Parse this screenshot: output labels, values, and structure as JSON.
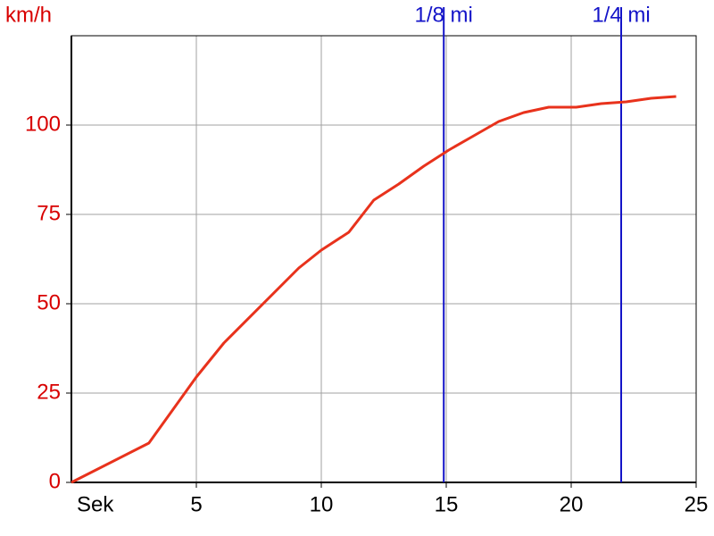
{
  "chart_data": {
    "type": "line",
    "ylabel": "km/h",
    "xlabel": "Sek",
    "x": [
      0,
      3.1,
      5,
      6.1,
      9.1,
      10,
      11.1,
      12.1,
      13.1,
      14.1,
      15.1,
      16.1,
      17.1,
      18.1,
      19.1,
      20.2,
      21.2,
      22.2,
      23.2,
      24.2
    ],
    "series": [
      {
        "color": "#e8321c",
        "values": [
          0,
          11,
          29.5,
          39,
          60,
          65,
          70,
          79,
          83.5,
          88.5,
          93,
          97,
          101,
          103.5,
          105,
          105,
          106,
          106.5,
          107.5,
          108
        ]
      }
    ],
    "xlim": [
      0,
      25
    ],
    "ylim": [
      0,
      125
    ],
    "xticks": [
      5,
      10,
      15,
      20,
      25
    ],
    "yticks": [
      0,
      25,
      50,
      75,
      100
    ],
    "grid": true,
    "markers": [
      {
        "x": 14.9,
        "label": "1/8 mi",
        "color": "#1414c8"
      },
      {
        "x": 22,
        "label": "1/4 mi",
        "color": "#1414c8"
      }
    ]
  }
}
